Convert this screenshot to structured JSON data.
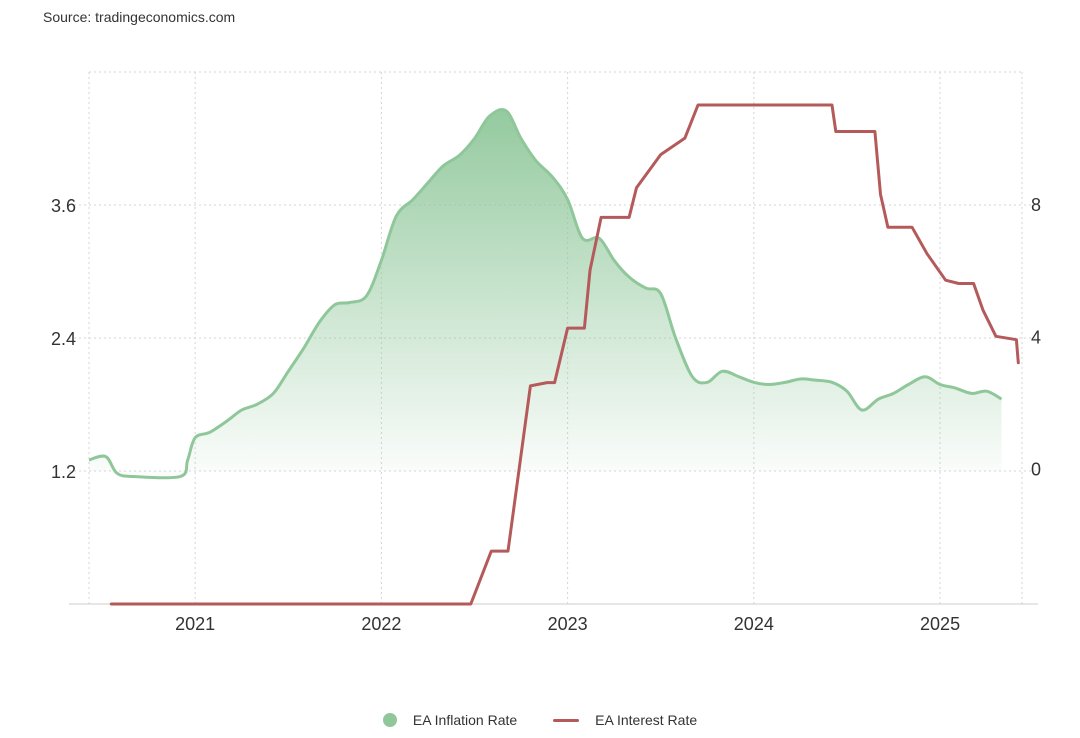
{
  "source": "Source: tradingeconomics.com",
  "colors": {
    "inflation": "#8fc79a",
    "interest": "#b55a5a",
    "grid": "#d4d4d4"
  },
  "chart_data": {
    "type": "line",
    "title": "",
    "grid": true,
    "legend_position": "bottom-center",
    "x_ticks": [
      "2021",
      "2022",
      "2023",
      "2024",
      "2025"
    ],
    "xlim": [
      2020.43,
      2025.44
    ],
    "y_left": {
      "ticks": [
        "1.2",
        "2.4",
        "3.6"
      ],
      "lim": [
        0,
        4.8
      ]
    },
    "y_right": {
      "ticks": [
        "0",
        "4",
        "8"
      ],
      "lim": [
        -4.1,
        12
      ]
    },
    "series": [
      {
        "name": "EA Inflation Rate",
        "axis": "left",
        "style": "area",
        "x": [
          2020.43,
          2020.52,
          2020.58,
          2020.67,
          2020.92,
          2020.96,
          2021.0,
          2021.08,
          2021.17,
          2021.25,
          2021.33,
          2021.42,
          2021.5,
          2021.58,
          2021.67,
          2021.75,
          2021.83,
          2021.92,
          2022.0,
          2022.08,
          2022.17,
          2022.25,
          2022.33,
          2022.42,
          2022.5,
          2022.58,
          2022.67,
          2022.75,
          2022.83,
          2022.92,
          2023.0,
          2023.08,
          2023.17,
          2023.25,
          2023.33,
          2023.42,
          2023.5,
          2023.58,
          2023.67,
          2023.75,
          2023.83,
          2023.92,
          2024.0,
          2024.08,
          2024.17,
          2024.25,
          2024.33,
          2024.42,
          2024.5,
          2024.58,
          2024.67,
          2024.75,
          2024.83,
          2024.92,
          2025.0,
          2025.08,
          2025.17,
          2025.25,
          2025.33
        ],
        "values": [
          1.3,
          1.33,
          1.18,
          1.15,
          1.15,
          1.3,
          1.5,
          1.55,
          1.65,
          1.75,
          1.8,
          1.9,
          2.1,
          2.3,
          2.55,
          2.7,
          2.72,
          2.78,
          3.1,
          3.5,
          3.65,
          3.8,
          3.95,
          4.05,
          4.2,
          4.4,
          4.45,
          4.2,
          4.0,
          3.85,
          3.65,
          3.3,
          3.3,
          3.1,
          2.95,
          2.85,
          2.8,
          2.4,
          2.05,
          2.0,
          2.1,
          2.05,
          2.0,
          1.98,
          2.0,
          2.03,
          2.02,
          2.0,
          1.92,
          1.75,
          1.85,
          1.9,
          1.98,
          2.05,
          1.98,
          1.95,
          1.9,
          1.92,
          1.85
        ]
      },
      {
        "name": "EA Interest Rate",
        "axis": "right",
        "style": "step-line",
        "x": [
          2020.55,
          2022.48,
          2022.59,
          2022.68,
          2022.74,
          2022.8,
          2022.89,
          2022.93,
          2023.0,
          2023.09,
          2023.12,
          2023.18,
          2023.33,
          2023.37,
          2023.5,
          2023.63,
          2023.7,
          2024.42,
          2024.44,
          2024.65,
          2024.68,
          2024.72,
          2024.85,
          2024.93,
          2025.03,
          2025.1,
          2025.18,
          2025.23,
          2025.3,
          2025.41,
          2025.42
        ],
        "values": [
          -4.1,
          -4.1,
          -2.5,
          -2.5,
          0.0,
          2.5,
          2.6,
          2.6,
          4.25,
          4.25,
          6.0,
          7.6,
          7.6,
          8.5,
          9.5,
          10.0,
          11.0,
          11.0,
          10.2,
          10.2,
          8.3,
          7.3,
          7.3,
          6.5,
          5.7,
          5.6,
          5.6,
          4.8,
          4.0,
          3.9,
          3.2
        ]
      }
    ]
  }
}
